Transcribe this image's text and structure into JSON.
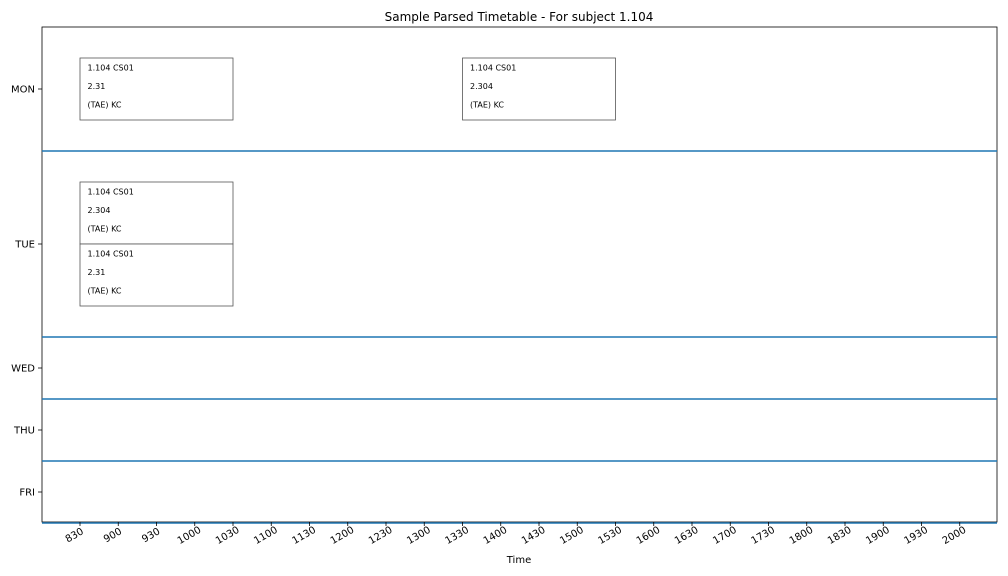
{
  "chart_data": {
    "type": "table",
    "title": "Sample Parsed Timetable - For subject 1.104",
    "xlabel": "Time",
    "ylabel": "",
    "x_ticks": [
      "830",
      "900",
      "930",
      "1000",
      "1030",
      "1100",
      "1130",
      "1200",
      "1230",
      "1300",
      "1330",
      "1400",
      "1430",
      "1500",
      "1530",
      "1600",
      "1630",
      "1700",
      "1730",
      "1800",
      "1830",
      "1900",
      "1930",
      "2000"
    ],
    "days": [
      "MON",
      "TUE",
      "WED",
      "THU",
      "FRI"
    ],
    "day_rows": [
      2,
      3,
      1,
      1,
      1
    ],
    "separator_color": "#1f77b4",
    "events": [
      {
        "day": "MON",
        "start": "830",
        "end": "1030",
        "slot": 0,
        "lines": [
          "1.104 CS01",
          "2.31",
          "(TAE) KC"
        ]
      },
      {
        "day": "MON",
        "start": "1330",
        "end": "1530",
        "slot": 0,
        "lines": [
          "1.104 CS01",
          "2.304",
          "(TAE) KC"
        ]
      },
      {
        "day": "TUE",
        "start": "830",
        "end": "1030",
        "slot": 0,
        "lines": [
          "1.104 CS01",
          "2.304",
          "(TAE) KC"
        ]
      },
      {
        "day": "TUE",
        "start": "830",
        "end": "1030",
        "slot": 1,
        "lines": [
          "1.104 CS01",
          "2.31",
          "(TAE) KC"
        ]
      }
    ]
  }
}
